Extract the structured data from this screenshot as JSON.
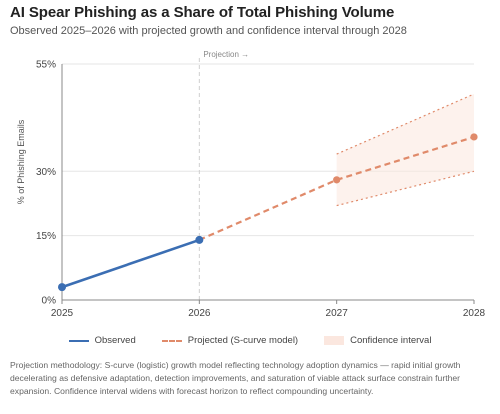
{
  "header": {
    "title": "AI Spear Phishing as a Share of Total Phishing Volume",
    "subtitle": "Observed 2025–2026 with projected growth and confidence interval through 2028"
  },
  "chart_data": {
    "type": "line",
    "ylabel": "% of Phishing Emails",
    "xlabel": "",
    "x_ticks": [
      "2025",
      "2026",
      "2027",
      "2028"
    ],
    "y_ticks": [
      "0%",
      "15%",
      "30%",
      "55%"
    ],
    "y_tick_values": [
      0,
      15,
      30,
      55
    ],
    "ylim": [
      0,
      55
    ],
    "xlim": [
      2025,
      2028
    ],
    "grid": "horizontal",
    "legend_position": "bottom",
    "annotation": "Projection →",
    "colors": {
      "observed": "#3b6eb3",
      "projected": "#e08a6a",
      "band": "#fbe7df"
    },
    "series": [
      {
        "name": "Observed",
        "x": [
          2025,
          2026
        ],
        "values": [
          3,
          14
        ]
      },
      {
        "name": "Projected (S-curve model)",
        "x": [
          2026,
          2027,
          2028
        ],
        "values": [
          14,
          28,
          38
        ]
      }
    ],
    "confidence_interval": {
      "name": "Confidence interval",
      "x": [
        2027,
        2028
      ],
      "lower": [
        22,
        30
      ],
      "upper": [
        34,
        48
      ]
    }
  },
  "footer": {
    "note": "Projection methodology: S-curve (logistic) growth model reflecting technology adoption dynamics — rapid initial growth decelerating as defensive adaptation, detection improvements, and saturation of viable attack surface constrain further expansion. Confidence interval widens with forecast horizon to reflect compounding uncertainty."
  }
}
